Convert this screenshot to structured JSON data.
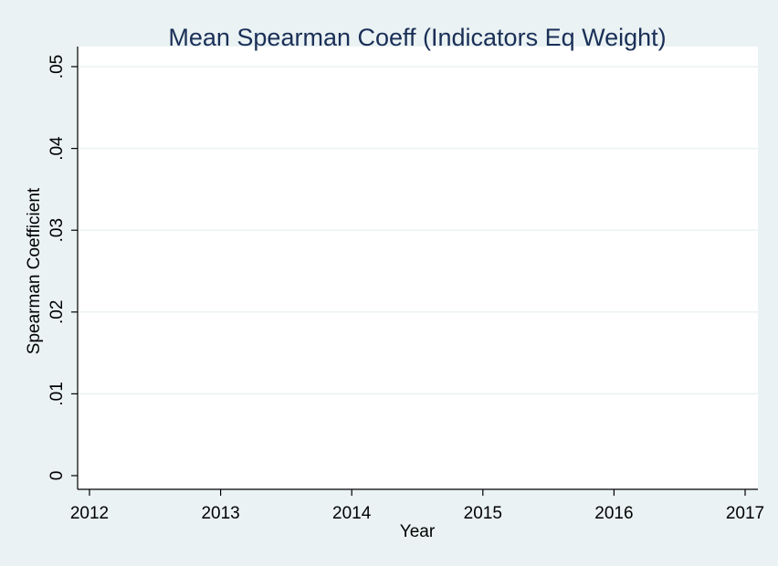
{
  "chart_data": {
    "type": "line",
    "title": "Mean Spearman Coeff (Indicators Eq Weight)",
    "xlabel": "Year",
    "ylabel": "Spearman Coefficient",
    "xlim": [
      2012,
      2017
    ],
    "ylim": [
      0,
      0.05
    ],
    "x_ticks": [
      2012,
      2013,
      2014,
      2015,
      2016,
      2017
    ],
    "x_tick_labels": [
      "2012",
      "2013",
      "2014",
      "2015",
      "2016",
      "2017"
    ],
    "y_ticks": [
      0,
      0.01,
      0.02,
      0.03,
      0.04,
      0.05
    ],
    "y_tick_labels": [
      "0",
      ".01",
      ".02",
      ".03",
      ".04",
      ".05"
    ],
    "grid": true,
    "series": [],
    "colors": {
      "background": "#eaf2f3",
      "plot_background": "#ffffff",
      "title": "#1a2f57",
      "grid": "#eaf2f3",
      "axis": "#000000"
    }
  }
}
